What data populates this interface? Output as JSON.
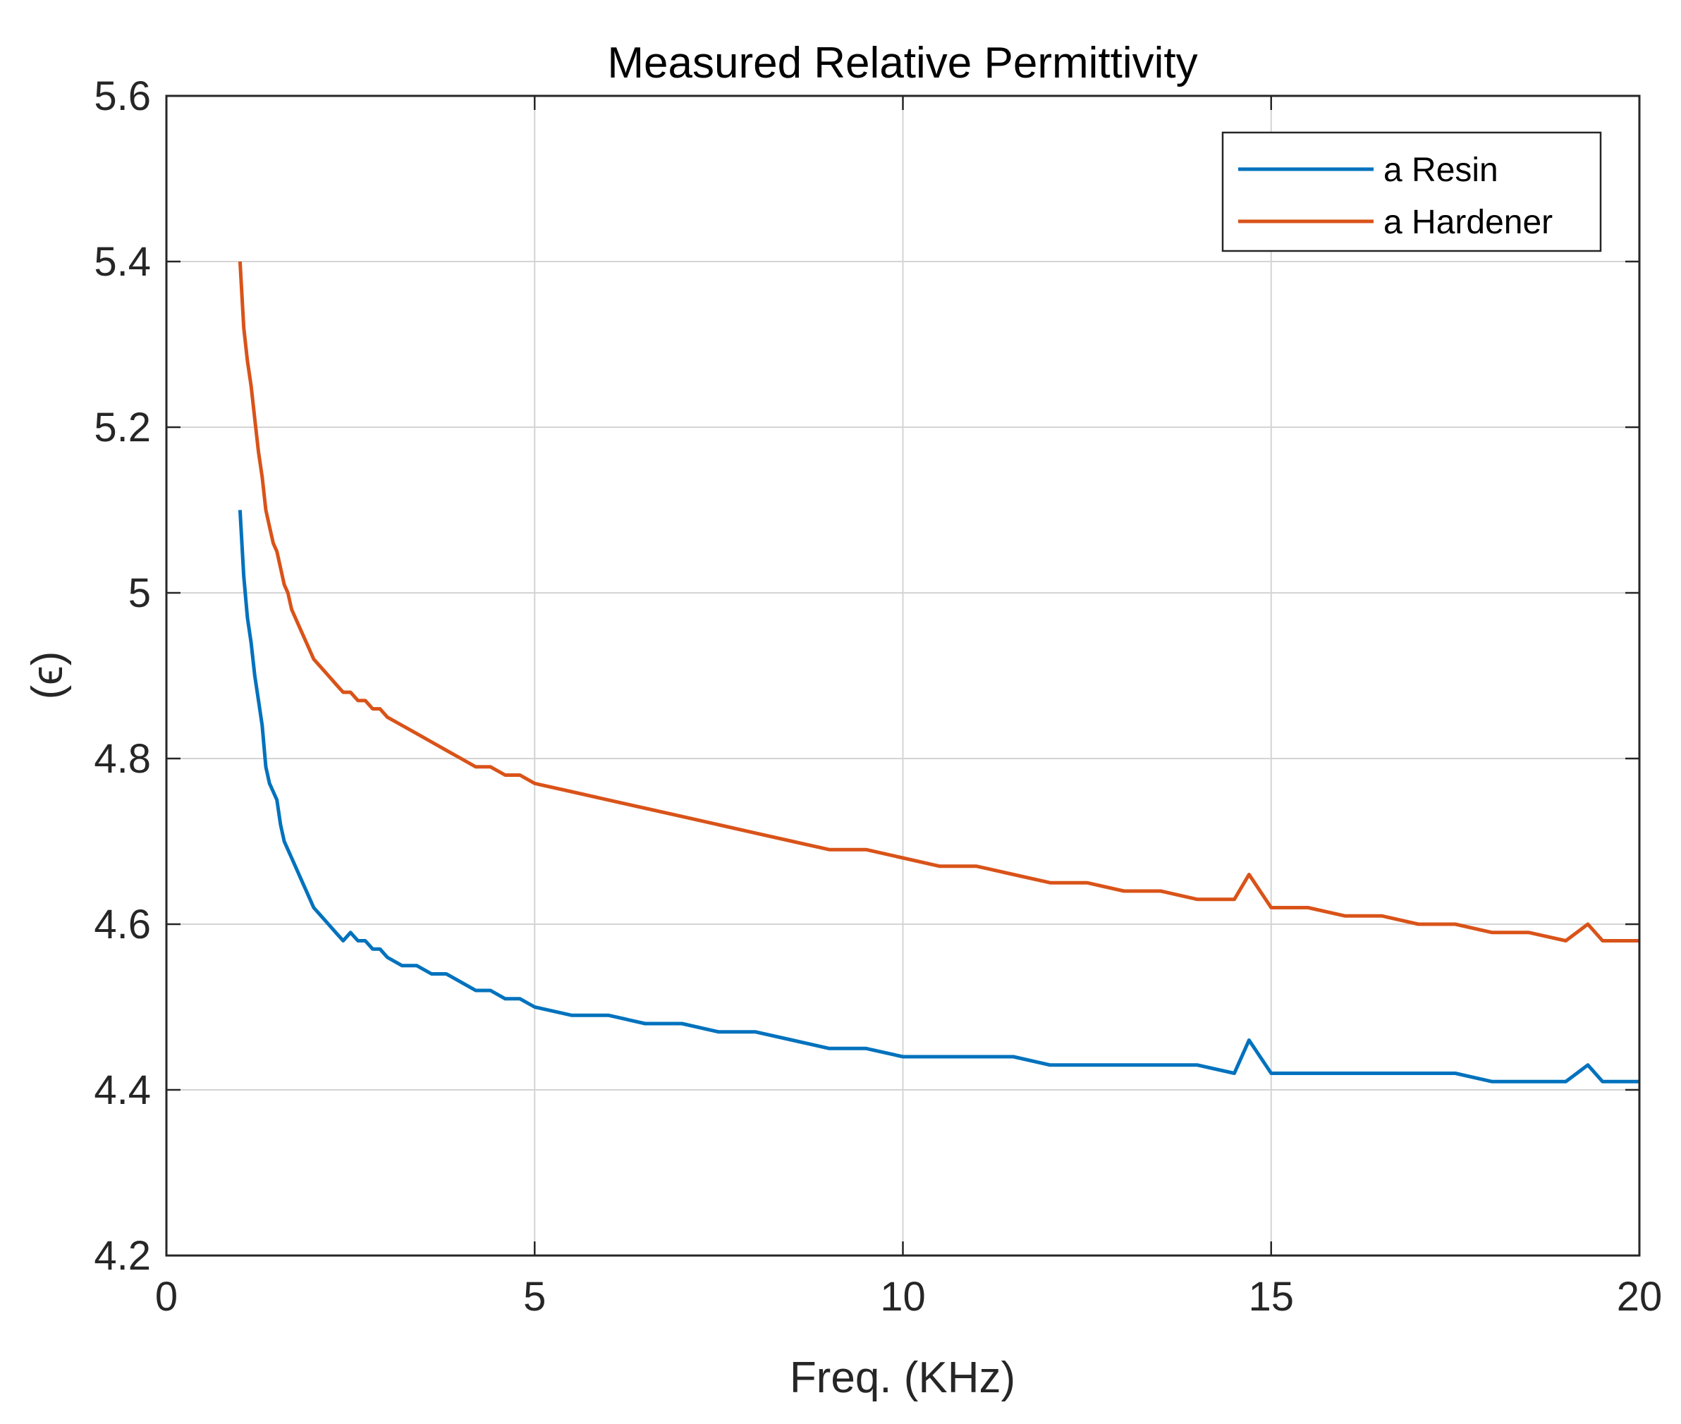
{
  "chart_data": {
    "type": "line",
    "title": "Measured Relative Permittivity",
    "xlabel": "Freq. (KHz)",
    "ylabel": "(ϵ)",
    "xlim": [
      0,
      20
    ],
    "ylim": [
      4.2,
      5.6
    ],
    "grid": true,
    "legend_position": "top-right",
    "x_ticks": [
      0,
      5,
      10,
      15,
      20
    ],
    "x_tick_labels": [
      "0",
      "5",
      "10",
      "15",
      "20"
    ],
    "y_ticks": [
      4.2,
      4.4,
      4.6,
      4.8,
      5.0,
      5.2,
      5.4,
      5.6
    ],
    "y_tick_labels": [
      "4.2",
      "4.4",
      "4.6",
      "4.8",
      "5",
      "5.2",
      "5.4",
      "5.6"
    ],
    "series": [
      {
        "name": "a Resin",
        "color": "#0072BD",
        "x": [
          1.0,
          1.05,
          1.1,
          1.15,
          1.2,
          1.25,
          1.3,
          1.35,
          1.4,
          1.45,
          1.5,
          1.55,
          1.6,
          1.65,
          1.7,
          1.75,
          1.8,
          1.85,
          1.9,
          1.95,
          2.0,
          2.1,
          2.2,
          2.3,
          2.4,
          2.5,
          2.6,
          2.7,
          2.8,
          2.9,
          3.0,
          3.2,
          3.4,
          3.6,
          3.8,
          4.0,
          4.2,
          4.4,
          4.6,
          4.8,
          5.0,
          5.5,
          6.0,
          6.5,
          7.0,
          7.5,
          8.0,
          8.5,
          9.0,
          9.5,
          10.0,
          10.5,
          11.0,
          11.5,
          12.0,
          12.5,
          13.0,
          13.5,
          14.0,
          14.5,
          14.7,
          15.0,
          15.5,
          16.0,
          16.5,
          17.0,
          17.5,
          18.0,
          18.5,
          19.0,
          19.3,
          19.5,
          19.8,
          20.0
        ],
        "values": [
          5.1,
          5.02,
          4.97,
          4.94,
          4.9,
          4.87,
          4.84,
          4.79,
          4.77,
          4.76,
          4.75,
          4.72,
          4.7,
          4.69,
          4.68,
          4.67,
          4.66,
          4.65,
          4.64,
          4.63,
          4.62,
          4.61,
          4.6,
          4.59,
          4.58,
          4.59,
          4.58,
          4.58,
          4.57,
          4.57,
          4.56,
          4.55,
          4.55,
          4.54,
          4.54,
          4.53,
          4.52,
          4.52,
          4.51,
          4.51,
          4.5,
          4.49,
          4.49,
          4.48,
          4.48,
          4.47,
          4.47,
          4.46,
          4.45,
          4.45,
          4.44,
          4.44,
          4.44,
          4.44,
          4.43,
          4.43,
          4.43,
          4.43,
          4.43,
          4.42,
          4.46,
          4.42,
          4.42,
          4.42,
          4.42,
          4.42,
          4.42,
          4.41,
          4.41,
          4.41,
          4.43,
          4.41,
          4.41,
          4.41
        ]
      },
      {
        "name": "a Hardener",
        "color": "#D95319",
        "x": [
          1.0,
          1.05,
          1.1,
          1.15,
          1.2,
          1.25,
          1.3,
          1.35,
          1.4,
          1.45,
          1.5,
          1.55,
          1.6,
          1.65,
          1.7,
          1.75,
          1.8,
          1.85,
          1.9,
          1.95,
          2.0,
          2.1,
          2.2,
          2.3,
          2.4,
          2.5,
          2.6,
          2.7,
          2.8,
          2.9,
          3.0,
          3.2,
          3.4,
          3.6,
          3.8,
          4.0,
          4.2,
          4.4,
          4.6,
          4.8,
          5.0,
          5.5,
          6.0,
          6.5,
          7.0,
          7.5,
          8.0,
          8.5,
          9.0,
          9.5,
          10.0,
          10.5,
          11.0,
          11.5,
          12.0,
          12.5,
          13.0,
          13.5,
          14.0,
          14.5,
          14.7,
          15.0,
          15.5,
          16.0,
          16.5,
          17.0,
          17.5,
          18.0,
          18.5,
          19.0,
          19.3,
          19.5,
          19.8,
          20.0
        ],
        "values": [
          5.4,
          5.32,
          5.28,
          5.25,
          5.21,
          5.17,
          5.14,
          5.1,
          5.08,
          5.06,
          5.05,
          5.03,
          5.01,
          5.0,
          4.98,
          4.97,
          4.96,
          4.95,
          4.94,
          4.93,
          4.92,
          4.91,
          4.9,
          4.89,
          4.88,
          4.88,
          4.87,
          4.87,
          4.86,
          4.86,
          4.85,
          4.84,
          4.83,
          4.82,
          4.81,
          4.8,
          4.79,
          4.79,
          4.78,
          4.78,
          4.77,
          4.76,
          4.75,
          4.74,
          4.73,
          4.72,
          4.71,
          4.7,
          4.69,
          4.69,
          4.68,
          4.67,
          4.67,
          4.66,
          4.65,
          4.65,
          4.64,
          4.64,
          4.63,
          4.63,
          4.66,
          4.62,
          4.62,
          4.61,
          4.61,
          4.6,
          4.6,
          4.59,
          4.59,
          4.58,
          4.6,
          4.58,
          4.58,
          4.58
        ]
      }
    ]
  }
}
